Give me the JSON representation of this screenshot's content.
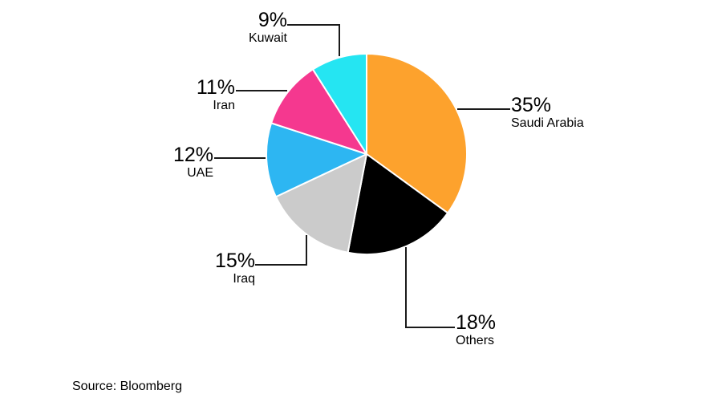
{
  "chart_data": {
    "type": "pie",
    "title": "",
    "direction": "clockwise",
    "start_angle_deg": 0,
    "legend_position": "callout-labels",
    "slices": [
      {
        "label": "Saudi Arabia",
        "pct_label": "35%",
        "value": 35,
        "color": "#FDA22D"
      },
      {
        "label": "Others",
        "pct_label": "18%",
        "value": 18,
        "color": "#000000"
      },
      {
        "label": "Iraq",
        "pct_label": "15%",
        "value": 15,
        "color": "#CBCBCB"
      },
      {
        "label": "UAE",
        "pct_label": "12%",
        "value": 12,
        "color": "#2DB6F2"
      },
      {
        "label": "Iran",
        "pct_label": "11%",
        "value": 11,
        "color": "#F5388F"
      },
      {
        "label": "Kuwait",
        "pct_label": "9%",
        "value": 9,
        "color": "#25E5F2"
      }
    ],
    "colors": {
      "leader_line": "#1a1a1a",
      "text": "#000000",
      "background": "#ffffff",
      "slice_separator": "#ffffff"
    }
  },
  "source": {
    "label": "Source: Bloomberg"
  }
}
